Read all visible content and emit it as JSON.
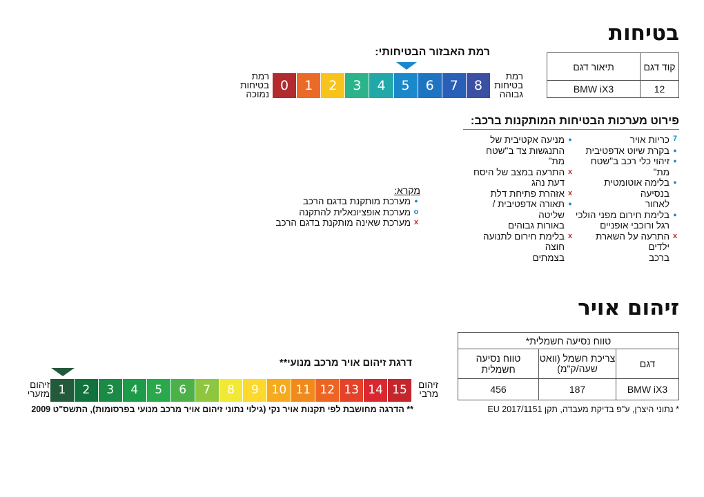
{
  "safety": {
    "title": "בטיחות",
    "table": {
      "headers": {
        "code": "קוד דגם",
        "desc": "תיאור דגם"
      },
      "row": {
        "code": "12",
        "desc": "BMW iX3"
      }
    },
    "scale_title": "רמת האבזור הבטיחותי:",
    "scale_values": [
      "0",
      "1",
      "2",
      "3",
      "4",
      "5",
      "6",
      "7",
      "8"
    ],
    "scale_colors": [
      "#b22a2e",
      "#ec6a28",
      "#f7c31d",
      "#2bb48a",
      "#23a8a9",
      "#1c88cc",
      "#1f74c2",
      "#2a5fb7",
      "#3b4fa3"
    ],
    "selected_level": 5,
    "low_label": [
      "רמת",
      "בטיחות",
      "נמוכה"
    ],
    "high_label": [
      "רמת",
      "בטיחות",
      "גבוהה"
    ],
    "features_title": "פירוט מערכות הבטיחות המותקנות ברכב:",
    "features_col1": [
      {
        "mark": "num",
        "num": "7",
        "lines": [
          "כריות אויר"
        ]
      },
      {
        "mark": "dot",
        "lines": [
          "בקרת שיוט אדפטיבית"
        ]
      },
      {
        "mark": "dot",
        "lines": [
          "זיהוי כלי רכב ב\"שטח מת\""
        ]
      },
      {
        "mark": "dot",
        "lines": [
          "בלימה אוטומטית בנסיעה",
          "לאחור"
        ]
      },
      {
        "mark": "dot",
        "lines": [
          "בלימת חירום מפני הולכי",
          "רגל ורוכבי אופניים"
        ]
      },
      {
        "mark": "x",
        "lines": [
          "התרעה על השארת ילדים",
          "ברכב"
        ]
      }
    ],
    "features_col2": [
      {
        "mark": "dot",
        "lines": [
          "מניעה אקטיבית של",
          "התנגשות צד ב\"שטח מת\""
        ]
      },
      {
        "mark": "x",
        "lines": [
          "התרעה במצב של היסח",
          "דעת נהג"
        ]
      },
      {
        "mark": "x",
        "lines": [
          "אזהרת פתיחת דלת"
        ]
      },
      {
        "mark": "dot",
        "lines": [
          "תאורה אדפטיבית / שליטה",
          "באורות גבוהים"
        ]
      },
      {
        "mark": "x",
        "lines": [
          "בלימת חירום לתנועה חוצה",
          "בצמתים"
        ]
      }
    ],
    "legend_title": "מקרא:",
    "legend": [
      {
        "mark": "dot",
        "text": "מערכת מותקנת בדגם הרכב"
      },
      {
        "mark": "o",
        "text": "מערכת אופציונאלית להתקנה"
      },
      {
        "mark": "x",
        "text": "מערכת שאינה מותקנת בדגם הרכב"
      }
    ]
  },
  "pollution": {
    "title": "זיהום אויר",
    "table": {
      "range_header": "טווח נסיעה חשמלית*",
      "col_model": "דגם",
      "col_consumption": "צריכת חשמל (וואט שעה/ק\"מ)",
      "col_range": "טווח נסיעה חשמלית",
      "row": {
        "model": "BMW iX3",
        "consumption": "187",
        "range": "456"
      }
    },
    "table_note": "* נתוני היצרן, ע\"פ בדיקת מעבדה, תקן EU 2017/1151",
    "scale_title": "דרגת זיהום אויר מרכב מנועי**",
    "scale_values": [
      "1",
      "2",
      "3",
      "4",
      "5",
      "6",
      "7",
      "8",
      "9",
      "10",
      "11",
      "12",
      "13",
      "14",
      "15"
    ],
    "scale_colors": [
      "#235a3c",
      "#12723e",
      "#1a8a44",
      "#1c9b48",
      "#2aa94c",
      "#4db14a",
      "#8ec640",
      "#f2e934",
      "#fcd92c",
      "#f6ab1f",
      "#f08a1c",
      "#ec6523",
      "#e4432a",
      "#d9282f",
      "#c5262d"
    ],
    "selected_level": 1,
    "min_label": [
      "זיהום",
      "מזערי"
    ],
    "max_label": [
      "זיהום",
      "מרבי"
    ],
    "scale_note": "** הדרגה מחושבת לפי תקנות אויר נקי (גילוי נתוני זיהום אויר מרכב מנועי בפרסומות), התשס\"ט 2009"
  }
}
